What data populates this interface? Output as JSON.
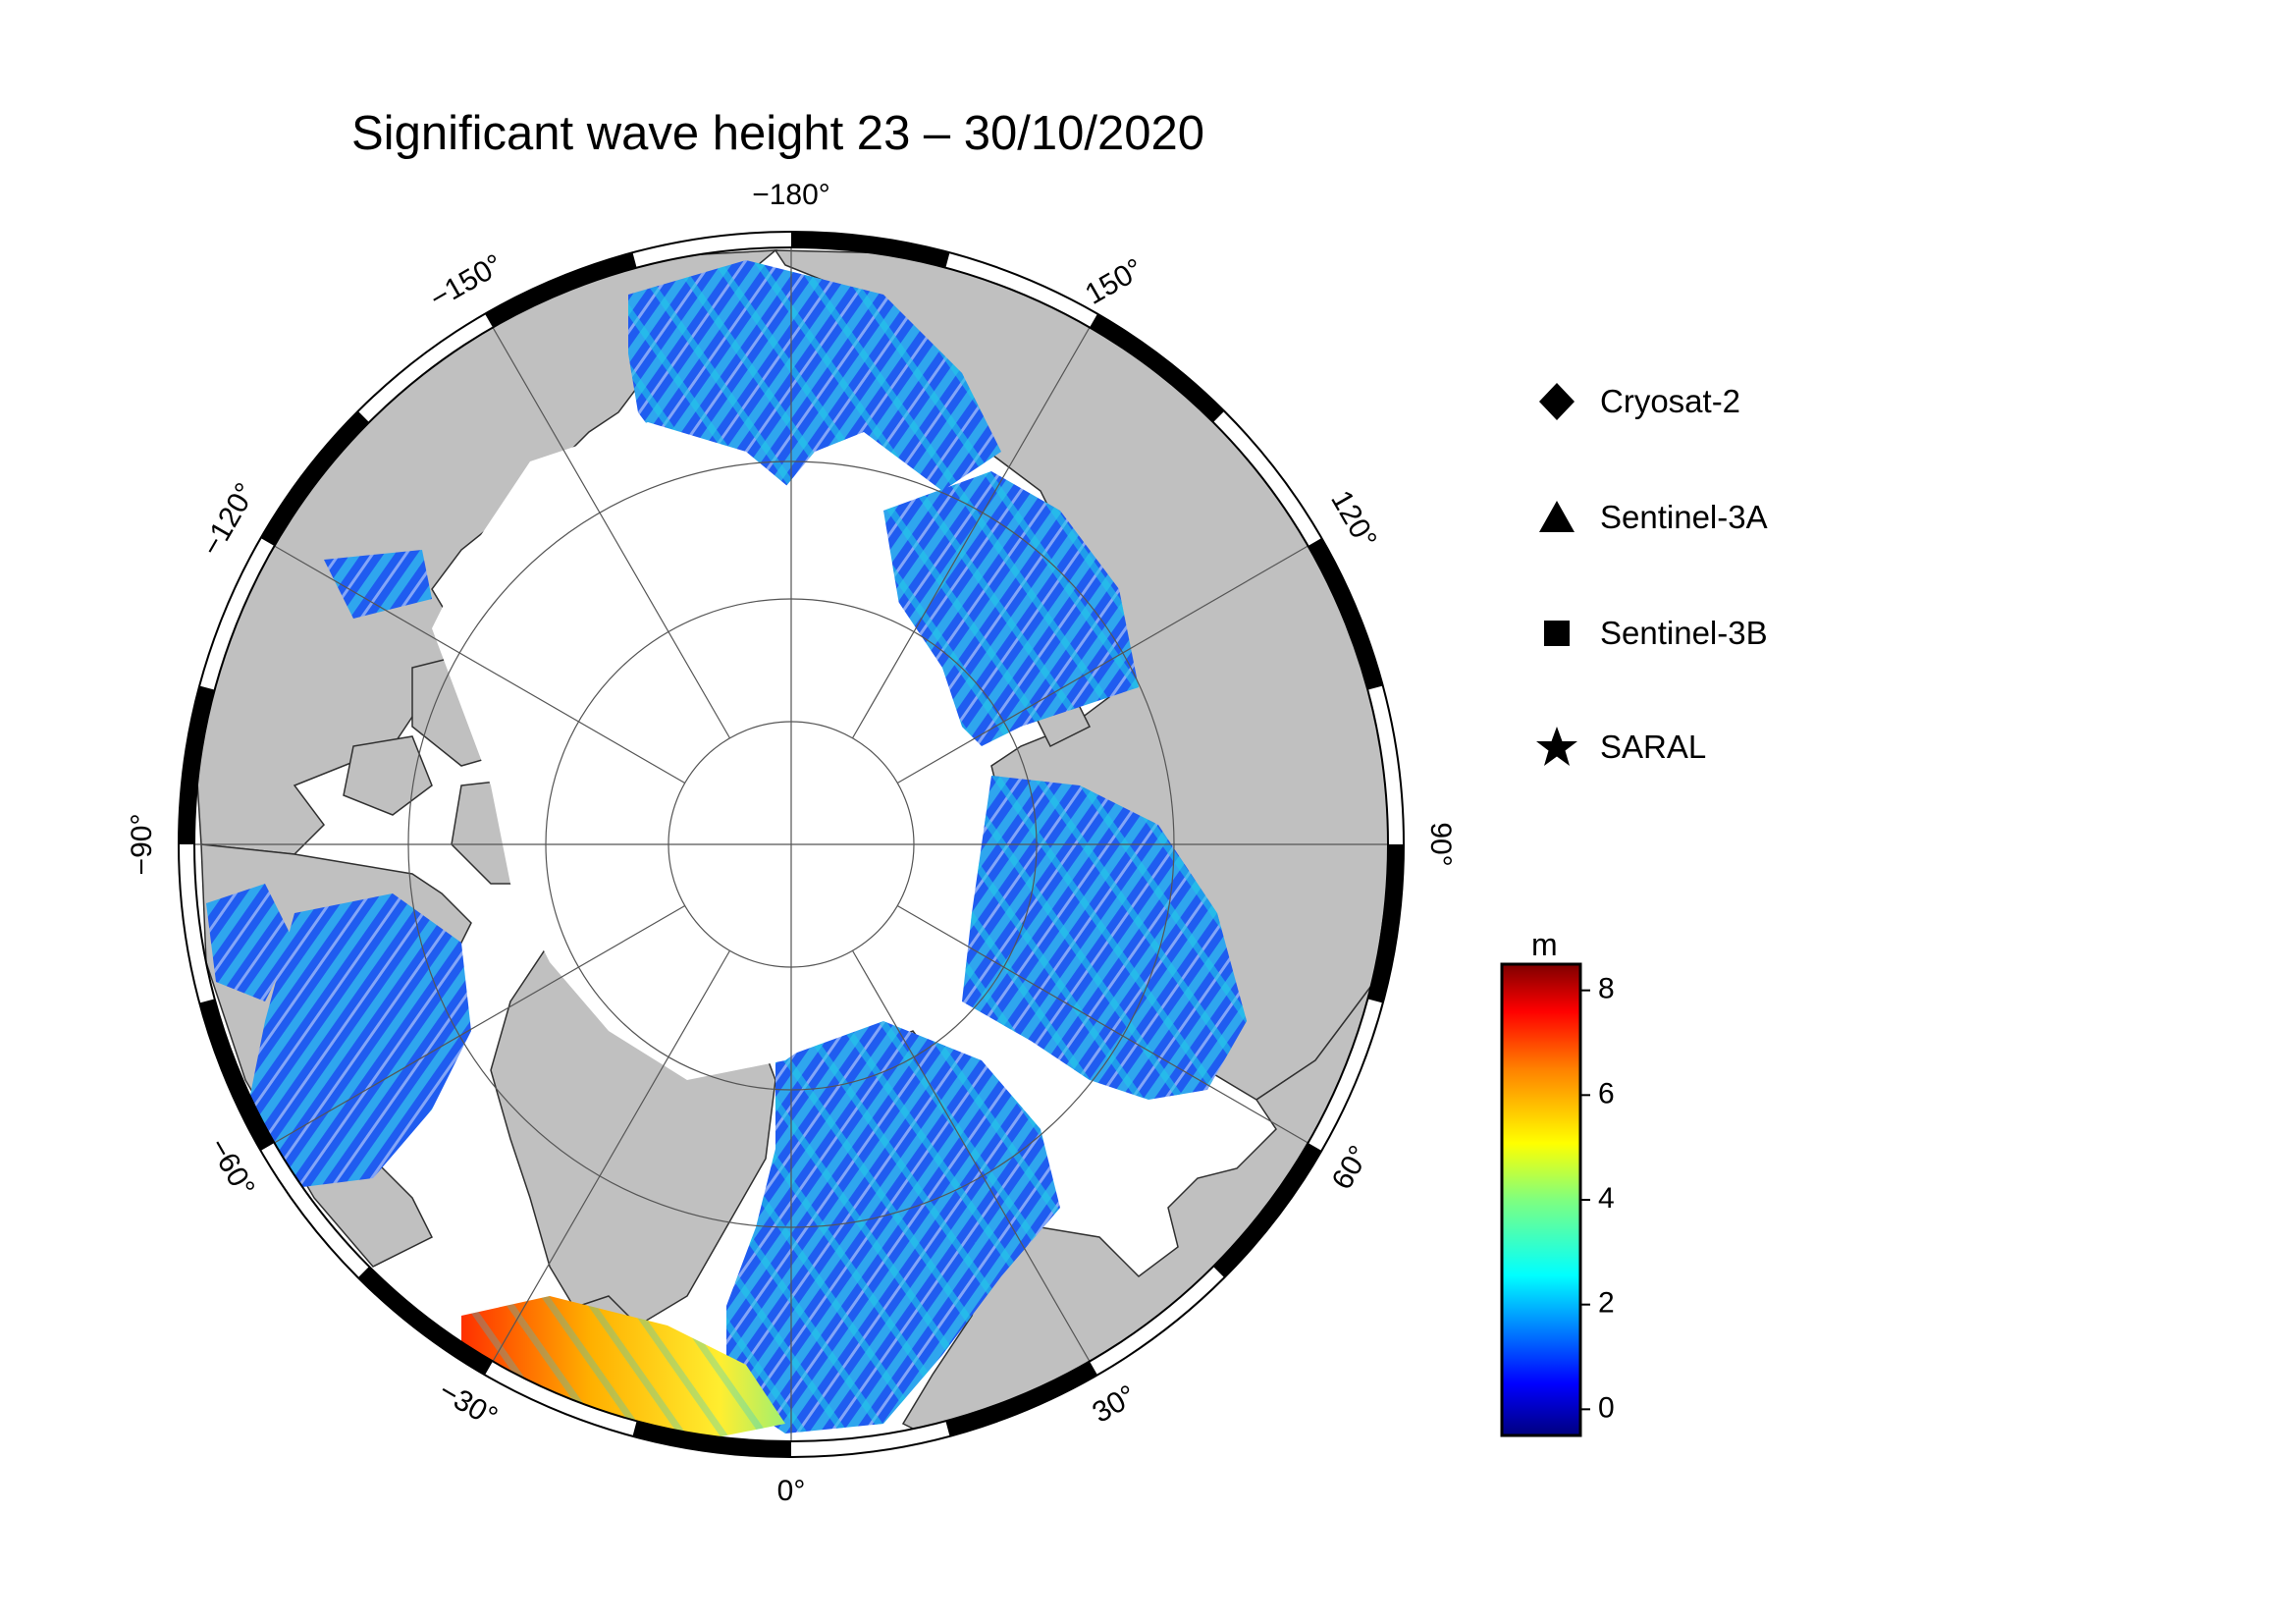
{
  "title": "Significant wave height 23 – 30/10/2020",
  "map": {
    "projection": "north polar stereographic",
    "lon_labels": [
      {
        "lon": 180,
        "text": "−180°"
      },
      {
        "lon": 150,
        "text": "150°"
      },
      {
        "lon": 120,
        "text": "120°"
      },
      {
        "lon": 90,
        "text": "90°"
      },
      {
        "lon": 60,
        "text": "60°"
      },
      {
        "lon": 30,
        "text": "30°"
      },
      {
        "lon": 0,
        "text": "0°"
      },
      {
        "lon": -30,
        "text": "−30°"
      },
      {
        "lon": -60,
        "text": "−60°"
      },
      {
        "lon": -90,
        "text": "−90°"
      },
      {
        "lon": -120,
        "text": "−120°"
      },
      {
        "lon": -150,
        "text": "−150°"
      }
    ],
    "colors": {
      "land": "#c0c0c0",
      "ice": "#ffffff",
      "frame": "#000000"
    }
  },
  "legend": {
    "items": [
      {
        "label": "Cryosat-2",
        "symbol": "diamond"
      },
      {
        "label": "Sentinel-3A",
        "symbol": "triangle"
      },
      {
        "label": "Sentinel-3B",
        "symbol": "square"
      },
      {
        "label": "SARAL",
        "symbol": "star"
      }
    ]
  },
  "colorbar": {
    "unit": "m",
    "min": -0.5,
    "max": 8.5,
    "ticks": [
      "0",
      "2",
      "4",
      "6",
      "8"
    ],
    "colormap": [
      "#00007f",
      "#0000ff",
      "#007fff",
      "#00ffff",
      "#7fff7f",
      "#ffff00",
      "#ff7f00",
      "#ff0000",
      "#7f0000"
    ]
  }
}
